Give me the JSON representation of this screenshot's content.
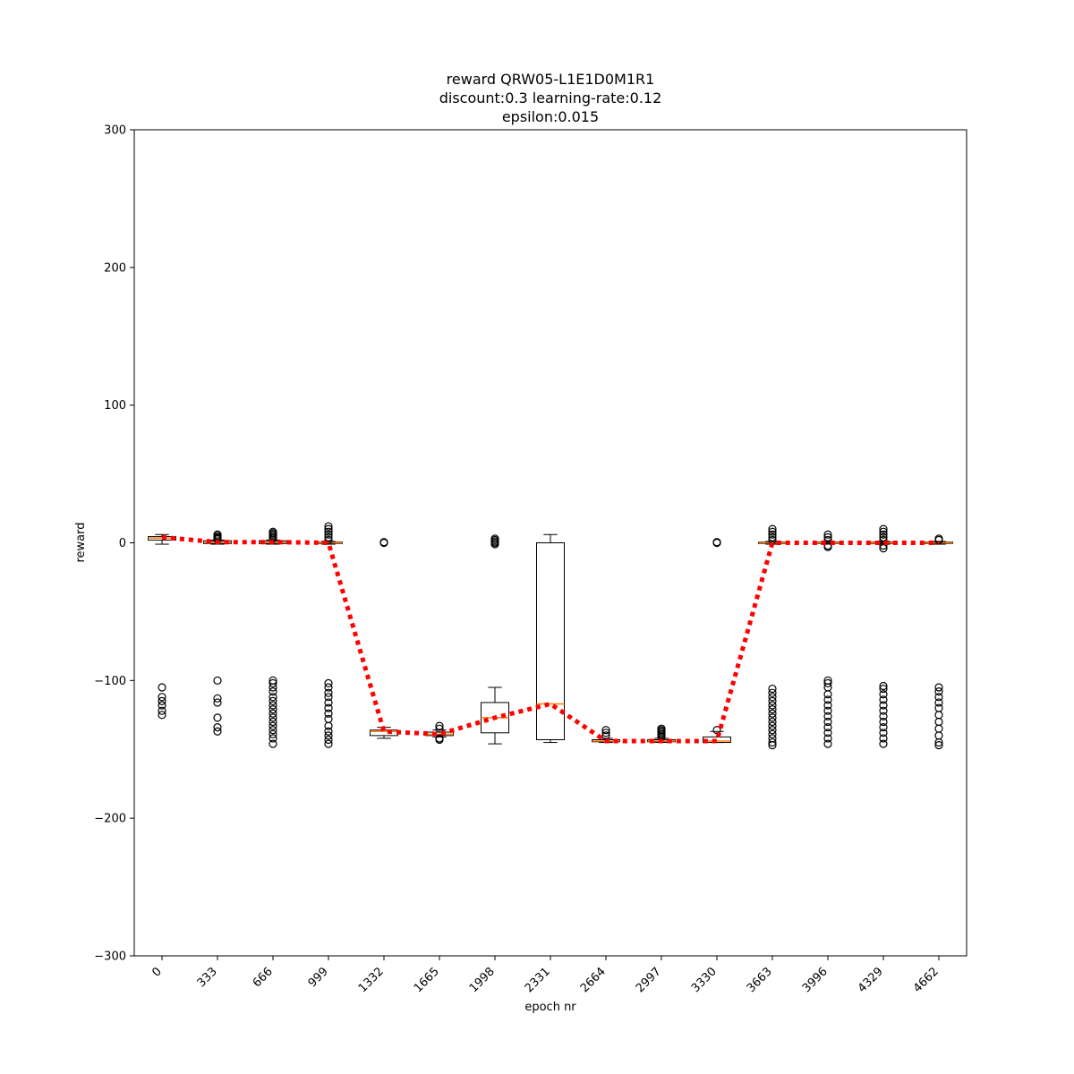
{
  "chart_data": {
    "type": "box",
    "title_lines": [
      "reward QRW05-L1E1D0M1R1",
      "discount:0.3 learning-rate:0.12",
      "epsilon:0.015"
    ],
    "xlabel": "epoch nr",
    "ylabel": "reward",
    "ylim": [
      -300,
      300
    ],
    "yticks": [
      -300,
      -200,
      -100,
      0,
      100,
      200,
      300
    ],
    "categories": [
      "0",
      "333",
      "666",
      "999",
      "1332",
      "1665",
      "1998",
      "2331",
      "2664",
      "2997",
      "3330",
      "3663",
      "3996",
      "4329",
      "4662"
    ],
    "colors": {
      "box": "#000000",
      "median": "#ff7f0e",
      "trend": "#ff0000"
    },
    "boxes": [
      {
        "whislo": -1,
        "q1": 2,
        "med": 3.5,
        "q3": 4.5,
        "whishi": 6,
        "fliers": [
          -105,
          -112,
          -115,
          -118,
          -122,
          -125
        ]
      },
      {
        "whislo": -1,
        "q1": -0.5,
        "med": 0.5,
        "q3": 1.5,
        "whishi": 2,
        "fliers": [
          -100,
          -113,
          -116,
          -127,
          -134,
          -137,
          3,
          4,
          5,
          6,
          2.5,
          3.5
        ]
      },
      {
        "whislo": -1,
        "q1": -0.5,
        "med": 0.5,
        "q3": 1.5,
        "whishi": 2,
        "fliers": [
          -100,
          -102,
          -105,
          -108,
          -112,
          -115,
          -118,
          -121,
          -124,
          -127,
          -130,
          -133,
          -136,
          -139,
          -142,
          -146,
          3,
          4,
          5,
          6,
          7,
          8
        ]
      },
      {
        "whislo": -1,
        "q1": -0.5,
        "med": 0,
        "q3": 0.5,
        "whishi": 1,
        "fliers": [
          -102,
          -105,
          -109,
          -112,
          -116,
          -120,
          -124,
          -128,
          -133,
          -137,
          -140,
          -143,
          -146,
          2,
          4,
          6,
          8,
          10,
          12
        ]
      },
      {
        "whislo": -142,
        "q1": -140,
        "med": -137,
        "q3": -136,
        "whishi": -134,
        "fliers": [
          0,
          0.5
        ]
      },
      {
        "whislo": -141,
        "q1": -140,
        "med": -139,
        "q3": -137.5,
        "whishi": -136,
        "fliers": [
          -133,
          -135,
          -142,
          -143
        ]
      },
      {
        "whislo": -146,
        "q1": -138,
        "med": -127,
        "q3": -116,
        "whishi": -105,
        "fliers": [
          -1,
          0,
          1,
          2,
          3
        ]
      },
      {
        "whislo": -145,
        "q1": -143,
        "med": -117,
        "q3": 0,
        "whishi": 6,
        "fliers": []
      },
      {
        "whislo": -145,
        "q1": -144.5,
        "med": -144,
        "q3": -143,
        "whishi": -142,
        "fliers": [
          -136,
          -138,
          -140
        ]
      },
      {
        "whislo": -145,
        "q1": -144.5,
        "med": -144,
        "q3": -143,
        "whishi": -142,
        "fliers": [
          -135,
          -136,
          -137,
          -138,
          -139,
          -140,
          -141
        ]
      },
      {
        "whislo": -145,
        "q1": -145,
        "med": -144,
        "q3": -141,
        "whishi": -137,
        "fliers": [
          -136,
          0,
          0.5
        ]
      },
      {
        "whislo": -1,
        "q1": -0.5,
        "med": 0,
        "q3": 0.5,
        "whishi": 1,
        "fliers": [
          -106,
          -109,
          -112,
          -115,
          -118,
          -121,
          -124,
          -127,
          -130,
          -133,
          -136,
          -139,
          -142,
          -145,
          -147,
          2,
          4,
          6,
          8,
          10
        ]
      },
      {
        "whislo": -1,
        "q1": -0.5,
        "med": 0,
        "q3": 0.5,
        "whishi": 1,
        "fliers": [
          -100,
          -102,
          -105,
          -110,
          -114,
          -118,
          -122,
          -126,
          -130,
          -134,
          -138,
          -142,
          -146,
          2,
          4,
          6,
          -2,
          -3
        ]
      },
      {
        "whislo": -1,
        "q1": -0.5,
        "med": 0,
        "q3": 0.5,
        "whishi": 1,
        "fliers": [
          -104,
          -106,
          -110,
          -114,
          -118,
          -122,
          -126,
          -130,
          -134,
          -138,
          -142,
          -146,
          2,
          4,
          6,
          8,
          10,
          -2,
          -4
        ]
      },
      {
        "whislo": -1,
        "q1": -0.5,
        "med": 0,
        "q3": 0.5,
        "whishi": 1,
        "fliers": [
          -105,
          -108,
          -112,
          -116,
          -120,
          -125,
          -130,
          -135,
          -140,
          -145,
          -147,
          2,
          3
        ]
      }
    ],
    "trend_line": [
      4,
      0.5,
      0.5,
      0,
      -137,
      -139,
      -127,
      -117,
      -144,
      -144,
      -144,
      0,
      0,
      0,
      0
    ]
  }
}
